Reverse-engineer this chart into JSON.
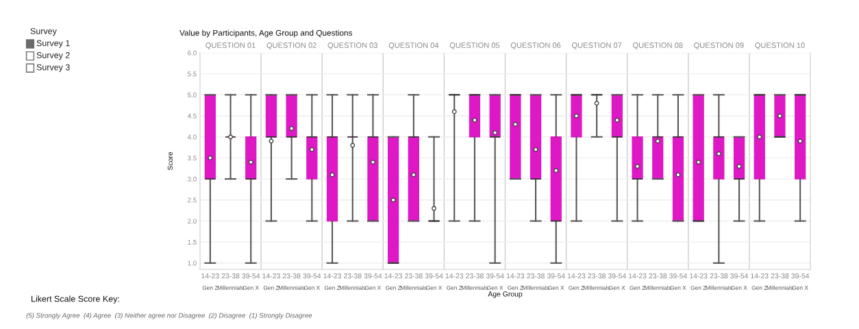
{
  "chart_data": [
    {
      "type": "box",
      "title": "Value by Participants, Age Group and Questions",
      "ylabel": "Score",
      "xlabel": "Age Group",
      "annotations": [
        "QUESTION 01",
        "QUESTION 02",
        "QUESTION 03",
        "QUESTION 04",
        "QUESTION 05",
        "QUESTION 06",
        "QUESTION 07",
        "QUESTION 08",
        "QUESTION 09",
        "QUESTION 10",
        "Likert Scale Score Key:",
        "(5) Strongly Agree  (4) Agree  (3) Neither agree nor Disagree  (2) Disagree  (1) Strongly Disagree"
      ],
      "categories": [
        "14-23\nGen Z",
        "23-38\nMillennials",
        "39-54\nGen X",
        "14-23\nGen Z",
        "23-38\nMillennials",
        "39-54\nGen X",
        "14-23\nGen Z",
        "23-38\nMillennials",
        "39-54\nGen X",
        "14-23\nGen Z",
        "23-38\nMillennials",
        "39-54\nGen X",
        "14-23\nGen Z",
        "23-38\nMillennials",
        "39-54\nGen X",
        "14-23\nGen Z",
        "23-38\nMillennials",
        "39-54\nGen X",
        "14-23\nGen Z",
        "23-38\nMillennials",
        "39-54\nGen X",
        "14-23\nGen Z",
        "23-38\nMillennials",
        "39-54\nGen X",
        "14-23\nGen Z",
        "23-38\nMillennials",
        "39-54\nGen X",
        "14-23\nGen Z",
        "23-38\nMillennials",
        "39-54\nGen X"
      ],
      "color": "#dd18c4",
      "grid": "y",
      "ylim": [
        0.85,
        6.0
      ],
      "yticks": [
        {
          "value": 1,
          "label": "1.0"
        },
        {
          "value": 1.5,
          "label": "1.5"
        },
        {
          "value": 2,
          "label": "2.0"
        },
        {
          "value": 2.5,
          "label": "2.5"
        },
        {
          "value": 3,
          "label": "3.0"
        },
        {
          "value": 3.5,
          "label": "3.5"
        },
        {
          "value": 4,
          "label": "4.0"
        },
        {
          "value": 4.5,
          "label": "4.5"
        },
        {
          "value": 5,
          "label": "5.0"
        },
        {
          "value": 5.5,
          "label": "5.5"
        },
        {
          "value": 6,
          "label": "6.0"
        }
      ],
      "boxes": [
        {
          "low": 1,
          "q1": 3,
          "median": 3,
          "q3": 5,
          "high": 5,
          "mean": 3.5
        },
        {
          "low": 3,
          "q1": 4,
          "median": 4,
          "q3": 4,
          "high": 5,
          "mean": 4.0
        },
        {
          "low": 1,
          "q1": 3,
          "median": 3,
          "q3": 4,
          "high": 5,
          "mean": 3.4
        },
        {
          "low": 2,
          "q1": 4,
          "median": 4,
          "q3": 5,
          "high": 5,
          "mean": 3.9
        },
        {
          "low": 3,
          "q1": 4,
          "median": 4,
          "q3": 5,
          "high": 5,
          "mean": 4.2
        },
        {
          "low": 2,
          "q1": 3,
          "median": 4,
          "q3": 4,
          "high": 5,
          "mean": 3.7
        },
        {
          "low": 1,
          "q1": 2,
          "median": 4,
          "q3": 4,
          "high": 5,
          "mean": 3.1
        },
        {
          "low": 2,
          "q1": 4,
          "median": 4,
          "q3": 4,
          "high": 5,
          "mean": 3.8
        },
        {
          "low": 2,
          "q1": 2,
          "median": 4,
          "q3": 4,
          "high": 5,
          "mean": 3.4
        },
        {
          "low": 1,
          "q1": 1,
          "median": 1,
          "q3": 4,
          "high": 4,
          "mean": 2.5
        },
        {
          "low": 2,
          "q1": 2,
          "median": 4,
          "q3": 4,
          "high": 5,
          "mean": 3.1
        },
        {
          "low": 2,
          "q1": 2,
          "median": 2,
          "q3": 2,
          "high": 4,
          "mean": 2.3
        },
        {
          "low": 2,
          "q1": 5,
          "median": 5,
          "q3": 5,
          "high": 5,
          "mean": 4.6
        },
        {
          "low": 2,
          "q1": 4,
          "median": 5,
          "q3": 5,
          "high": 5,
          "mean": 4.4
        },
        {
          "low": 1,
          "q1": 4,
          "median": 4,
          "q3": 5,
          "high": 5,
          "mean": 4.1
        },
        {
          "low": 3,
          "q1": 3,
          "median": 5,
          "q3": 5,
          "high": 5,
          "mean": 4.3
        },
        {
          "low": 2,
          "q1": 3,
          "median": 3,
          "q3": 5,
          "high": 5,
          "mean": 3.7
        },
        {
          "low": 1,
          "q1": 2,
          "median": 2,
          "q3": 4,
          "high": 5,
          "mean": 3.2
        },
        {
          "low": 2,
          "q1": 4,
          "median": 5,
          "q3": 5,
          "high": 5,
          "mean": 4.5
        },
        {
          "low": 4,
          "q1": 5,
          "median": 5,
          "q3": 5,
          "high": 5,
          "mean": 4.8
        },
        {
          "low": 2,
          "q1": 4,
          "median": 4,
          "q3": 5,
          "high": 5,
          "mean": 4.4
        },
        {
          "low": 2,
          "q1": 3,
          "median": 3,
          "q3": 4,
          "high": 5,
          "mean": 3.3
        },
        {
          "low": 3,
          "q1": 3,
          "median": 4,
          "q3": 4,
          "high": 5,
          "mean": 3.9
        },
        {
          "low": 2,
          "q1": 2,
          "median": 4,
          "q3": 4,
          "high": 5,
          "mean": 3.1
        },
        {
          "low": 2,
          "q1": 2,
          "median": 2,
          "q3": 5,
          "high": 5,
          "mean": 3.4
        },
        {
          "low": 1,
          "q1": 3,
          "median": 4,
          "q3": 4,
          "high": 5,
          "mean": 3.6
        },
        {
          "low": 2,
          "q1": 3,
          "median": 3,
          "q3": 4,
          "high": 4,
          "mean": 3.3
        },
        {
          "low": 2,
          "q1": 3,
          "median": 5,
          "q3": 5,
          "high": 5,
          "mean": 4.0
        },
        {
          "low": 4,
          "q1": 4,
          "median": 4,
          "q3": 5,
          "high": 5,
          "mean": 4.5
        },
        {
          "low": 2,
          "q1": 3,
          "median": 5,
          "q3": 5,
          "high": 5,
          "mean": 3.9
        }
      ]
    },
    {
      "type": "other",
      "title": "Survey",
      "series": [
        {
          "name": "Survey 1",
          "color": "#6b6b6b"
        },
        {
          "name": "Survey 2",
          "color": "#ffffff"
        },
        {
          "name": "Survey 3",
          "color": "#ffffff"
        }
      ]
    }
  ]
}
